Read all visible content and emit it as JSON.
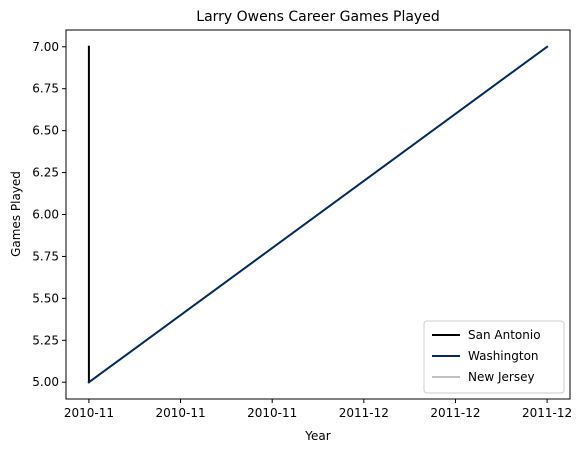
{
  "chart_data": {
    "type": "line",
    "title": "Larry Owens Career Games Played",
    "xlabel": "Year",
    "ylabel": "Games Played",
    "x_tick_labels": [
      "2010-11",
      "2010-11",
      "2010-11",
      "2011-12",
      "2011-12",
      "2011-12"
    ],
    "y_ticks": [
      "5.00",
      "5.25",
      "5.50",
      "5.75",
      "6.00",
      "6.25",
      "6.50",
      "6.75",
      "7.00"
    ],
    "ylim": [
      4.9,
      7.1
    ],
    "y_tick_values": [
      5.0,
      5.25,
      5.5,
      5.75,
      6.0,
      6.25,
      6.5,
      6.75,
      7.0
    ],
    "x_tick_values": [
      0,
      0.2,
      0.4,
      0.6,
      0.8,
      1.0
    ],
    "xlim": [
      -0.05,
      1.05
    ],
    "grid": false,
    "legend_position": "bottom-right",
    "series": [
      {
        "name": "San Antonio",
        "color": "#000000",
        "x": [
          0,
          0
        ],
        "y": [
          7,
          5
        ]
      },
      {
        "name": "Washington",
        "color": "#002b5c",
        "x": [
          0,
          1
        ],
        "y": [
          5,
          7
        ]
      },
      {
        "name": "New Jersey",
        "color": "#c0c0c0",
        "x": [],
        "y": []
      }
    ]
  }
}
